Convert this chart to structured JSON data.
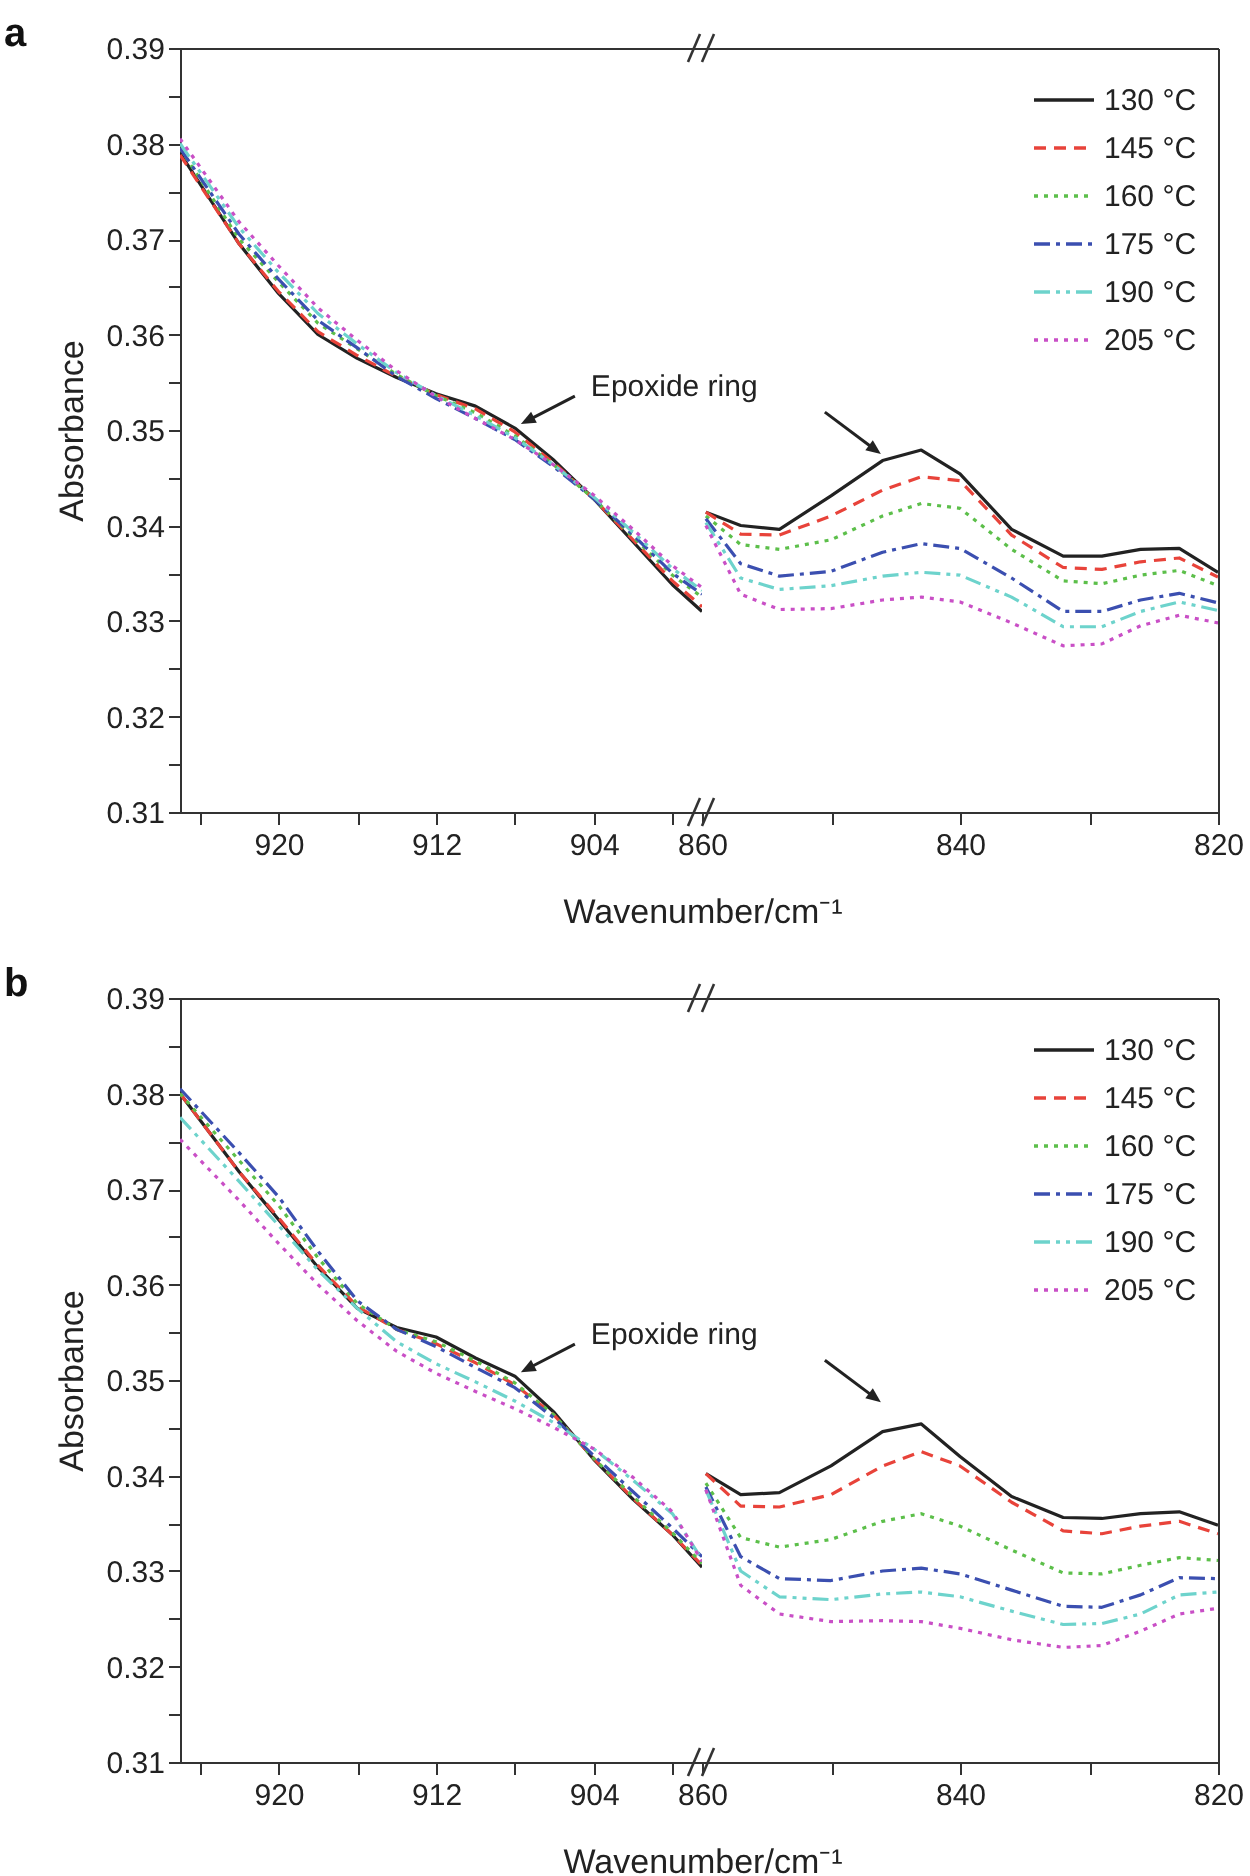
{
  "chart_data": [
    {
      "type": "line",
      "title": "a",
      "xlabel": "Wavenumber/cm⁻¹",
      "ylabel": "Absorbance",
      "x": [
        925,
        922,
        920,
        918,
        916,
        914,
        912,
        910,
        908,
        906,
        904,
        902,
        900,
        898.5
      ],
      "series": [
        {
          "color": "#222222",
          "line_style": "solid",
          "values": [
            0.379,
            0.3695,
            0.3643,
            0.36,
            0.3575,
            0.3555,
            0.3538,
            0.3525,
            0.3502,
            0.3468,
            0.3428,
            0.3383,
            0.3338,
            0.331
          ]
        },
        {
          "color": "#e8433a",
          "line_style": "dashed",
          "values": [
            0.3788,
            0.3695,
            0.3645,
            0.3603,
            0.3578,
            0.3556,
            0.3537,
            0.3522,
            0.3498,
            0.3465,
            0.3428,
            0.3385,
            0.3342,
            0.3315
          ]
        },
        {
          "color": "#5cbf4a",
          "line_style": "dotted",
          "values": [
            0.3795,
            0.37,
            0.3655,
            0.3612,
            0.3585,
            0.3558,
            0.3536,
            0.3518,
            0.3494,
            0.3463,
            0.3428,
            0.3388,
            0.3348,
            0.3325
          ]
        },
        {
          "color": "#3b4fb0",
          "line_style": "dashdot",
          "values": [
            0.3795,
            0.3705,
            0.3658,
            0.3615,
            0.3586,
            0.3556,
            0.3533,
            0.3512,
            0.349,
            0.3461,
            0.3428,
            0.339,
            0.335,
            0.3328
          ]
        },
        {
          "color": "#6dd3cc",
          "line_style": "dashdotdot",
          "values": [
            0.38,
            0.3712,
            0.3665,
            0.3622,
            0.359,
            0.356,
            0.3536,
            0.3515,
            0.3492,
            0.3463,
            0.343,
            0.3393,
            0.3355,
            0.3332
          ]
        },
        {
          "color": "#c94fc6",
          "line_style": "dotted",
          "values": [
            0.3805,
            0.3718,
            0.3672,
            0.3628,
            0.3594,
            0.3562,
            0.3535,
            0.3512,
            0.349,
            0.3463,
            0.3432,
            0.3396,
            0.3358,
            0.3335
          ]
        }
      ],
      "xlim": [
        925,
        898.5
      ],
      "xticks": [
        {
          "value": 924,
          "label": null
        },
        920,
        {
          "value": 916,
          "label": null
        },
        912,
        {
          "value": 908,
          "label": null
        },
        904,
        {
          "value": 900,
          "label": null
        }
      ],
      "ylim": [
        0.31,
        0.39
      ],
      "yticks": [
        0.31,
        {
          "value": 0.315,
          "label": null
        },
        0.32,
        {
          "value": 0.325,
          "label": null
        },
        0.33,
        {
          "value": 0.335,
          "label": null
        },
        0.34,
        {
          "value": 0.345,
          "label": null
        },
        0.35,
        {
          "value": 0.355,
          "label": null
        },
        0.36,
        {
          "value": 0.365,
          "label": null
        },
        0.37,
        {
          "value": 0.375,
          "label": null
        },
        0.38,
        {
          "value": 0.385,
          "label": null
        },
        0.39
      ],
      "annotations": [
        {
          "text": "Epoxide ring",
          "x": 908,
          "y": 0.3502
        }
      ]
    },
    {
      "type": "line",
      "x": [
        859.7,
        857,
        854,
        850,
        846,
        843,
        840,
        836,
        832,
        829,
        826,
        823,
        820
      ],
      "series": [
        {
          "name": "130 °C",
          "color": "#222222",
          "line_style": "solid",
          "values": [
            0.3414,
            0.34,
            0.3396,
            0.3431,
            0.3468,
            0.3479,
            0.3454,
            0.3396,
            0.3368,
            0.3368,
            0.3375,
            0.3376,
            0.3351
          ]
        },
        {
          "name": "145 °C",
          "color": "#e8433a",
          "line_style": "dashed",
          "values": [
            0.3414,
            0.3391,
            0.339,
            0.341,
            0.3437,
            0.3451,
            0.3447,
            0.339,
            0.3356,
            0.3354,
            0.3362,
            0.3366,
            0.3346
          ]
        },
        {
          "name": "160 °C",
          "color": "#5cbf4a",
          "line_style": "dotted",
          "values": [
            0.341,
            0.338,
            0.3375,
            0.3385,
            0.341,
            0.3423,
            0.3418,
            0.3375,
            0.3342,
            0.3339,
            0.3348,
            0.3353,
            0.3337
          ]
        },
        {
          "name": "175 °C",
          "color": "#3b4fb0",
          "line_style": "dashdot",
          "values": [
            0.3407,
            0.336,
            0.3347,
            0.3352,
            0.3372,
            0.3381,
            0.3376,
            0.3345,
            0.331,
            0.331,
            0.3322,
            0.3329,
            0.3319
          ]
        },
        {
          "name": "190 °C",
          "color": "#6dd3cc",
          "line_style": "dashdotdot",
          "values": [
            0.3403,
            0.3345,
            0.3333,
            0.3337,
            0.3347,
            0.3351,
            0.3348,
            0.3325,
            0.3294,
            0.3294,
            0.331,
            0.332,
            0.3311
          ]
        },
        {
          "name": "205 °C",
          "color": "#c94fc6",
          "line_style": "dotted",
          "values": [
            0.34,
            0.3328,
            0.3312,
            0.3313,
            0.3322,
            0.3325,
            0.332,
            0.3298,
            0.3274,
            0.3276,
            0.3295,
            0.3306,
            0.3298
          ]
        }
      ],
      "xlim": [
        860,
        820
      ],
      "xticks": [
        860,
        {
          "value": 850,
          "label": null
        },
        840,
        {
          "value": 830,
          "label": null
        },
        820
      ],
      "ylim": [
        0.31,
        0.39
      ],
      "legend": "top right",
      "tick_labels": "x"
    },
    {
      "type": "line",
      "title": "b",
      "xlabel": "Wavenumber/cm⁻¹",
      "ylabel": "Absorbance",
      "x": [
        925,
        922,
        920,
        918,
        916,
        914,
        912,
        910,
        908,
        906,
        904,
        902,
        900,
        898.5
      ],
      "series": [
        {
          "color": "#222222",
          "line_style": "solid",
          "values": [
            0.38,
            0.3718,
            0.3668,
            0.3618,
            0.3575,
            0.3555,
            0.3545,
            0.3523,
            0.3504,
            0.3466,
            0.3417,
            0.3375,
            0.3338,
            0.3304
          ]
        },
        {
          "color": "#e8433a",
          "line_style": "dashed",
          "values": [
            0.38,
            0.3718,
            0.367,
            0.362,
            0.3577,
            0.3553,
            0.3538,
            0.3518,
            0.3495,
            0.3463,
            0.3418,
            0.3376,
            0.3338,
            0.3306
          ]
        },
        {
          "color": "#5cbf4a",
          "line_style": "dotted",
          "values": [
            0.38,
            0.373,
            0.3683,
            0.3628,
            0.358,
            0.3553,
            0.354,
            0.352,
            0.3497,
            0.3463,
            0.3418,
            0.3378,
            0.334,
            0.3308
          ]
        },
        {
          "color": "#3b4fb0",
          "line_style": "dashdot",
          "values": [
            0.3805,
            0.3738,
            0.3692,
            0.3635,
            0.3583,
            0.3553,
            0.3535,
            0.3513,
            0.3492,
            0.346,
            0.3421,
            0.3383,
            0.3345,
            0.3315
          ]
        },
        {
          "color": "#6dd3cc",
          "line_style": "dashdotdot",
          "values": [
            0.3775,
            0.3708,
            0.3662,
            0.3615,
            0.3575,
            0.354,
            0.3517,
            0.3498,
            0.3478,
            0.3455,
            0.3428,
            0.3395,
            0.336,
            0.3312
          ]
        },
        {
          "color": "#c94fc6",
          "line_style": "dotted",
          "values": [
            0.3752,
            0.3688,
            0.3643,
            0.36,
            0.3562,
            0.353,
            0.3507,
            0.3488,
            0.347,
            0.345,
            0.3428,
            0.3398,
            0.3362,
            0.331
          ]
        }
      ],
      "xlim": [
        925,
        898.5
      ],
      "xticks": [
        {
          "value": 924,
          "label": null
        },
        920,
        {
          "value": 916,
          "label": null
        },
        912,
        {
          "value": 908,
          "label": null
        },
        904,
        {
          "value": 900,
          "label": null
        }
      ],
      "ylim": [
        0.31,
        0.39
      ],
      "yticks": [
        0.31,
        {
          "value": 0.315,
          "label": null
        },
        0.32,
        {
          "value": 0.325,
          "label": null
        },
        0.33,
        {
          "value": 0.335,
          "label": null
        },
        0.34,
        {
          "value": 0.345,
          "label": null
        },
        0.35,
        {
          "value": 0.355,
          "label": null
        },
        0.36,
        {
          "value": 0.365,
          "label": null
        },
        0.37,
        {
          "value": 0.375,
          "label": null
        },
        0.38,
        {
          "value": 0.385,
          "label": null
        },
        0.39
      ],
      "annotations": [
        {
          "text": "Epoxide ring",
          "x": 908,
          "y": 0.3504
        }
      ]
    },
    {
      "type": "line",
      "x": [
        859.7,
        857,
        854,
        850,
        846,
        843,
        840,
        836,
        832,
        829,
        826,
        823,
        820
      ],
      "series": [
        {
          "name": "130 °C",
          "color": "#222222",
          "line_style": "solid",
          "values": [
            0.3402,
            0.338,
            0.3382,
            0.341,
            0.3446,
            0.3454,
            0.342,
            0.3378,
            0.3356,
            0.3355,
            0.336,
            0.3362,
            0.3348
          ]
        },
        {
          "name": "145 °C",
          "color": "#e8433a",
          "line_style": "dashed",
          "values": [
            0.3402,
            0.3368,
            0.3367,
            0.338,
            0.341,
            0.3425,
            0.341,
            0.3372,
            0.3342,
            0.3339,
            0.3347,
            0.3352,
            0.3339
          ]
        },
        {
          "name": "160 °C",
          "color": "#5cbf4a",
          "line_style": "dotted",
          "values": [
            0.3392,
            0.3335,
            0.3325,
            0.3333,
            0.3352,
            0.336,
            0.3347,
            0.3322,
            0.3298,
            0.3297,
            0.3306,
            0.3314,
            0.3311
          ]
        },
        {
          "name": "175 °C",
          "color": "#3b4fb0",
          "line_style": "dashdot",
          "values": [
            0.3388,
            0.3315,
            0.3292,
            0.329,
            0.33,
            0.3303,
            0.3297,
            0.328,
            0.3263,
            0.3262,
            0.3275,
            0.3293,
            0.3292
          ]
        },
        {
          "name": "190 °C",
          "color": "#6dd3cc",
          "line_style": "dashdotdot",
          "values": [
            0.3385,
            0.33,
            0.3273,
            0.327,
            0.3276,
            0.3278,
            0.3273,
            0.3258,
            0.3244,
            0.3245,
            0.3255,
            0.3275,
            0.3278
          ]
        },
        {
          "name": "205 °C",
          "color": "#c94fc6",
          "line_style": "dotted",
          "values": [
            0.3385,
            0.3285,
            0.3255,
            0.3247,
            0.3248,
            0.3247,
            0.324,
            0.3228,
            0.322,
            0.3222,
            0.3237,
            0.3255,
            0.3261
          ]
        }
      ],
      "xlim": [
        860,
        820
      ],
      "xticks": [
        860,
        {
          "value": 850,
          "label": null
        },
        840,
        {
          "value": 830,
          "label": null
        },
        820
      ],
      "ylim": [
        0.31,
        0.39
      ],
      "legend": "top right",
      "tick_labels": "x"
    }
  ]
}
